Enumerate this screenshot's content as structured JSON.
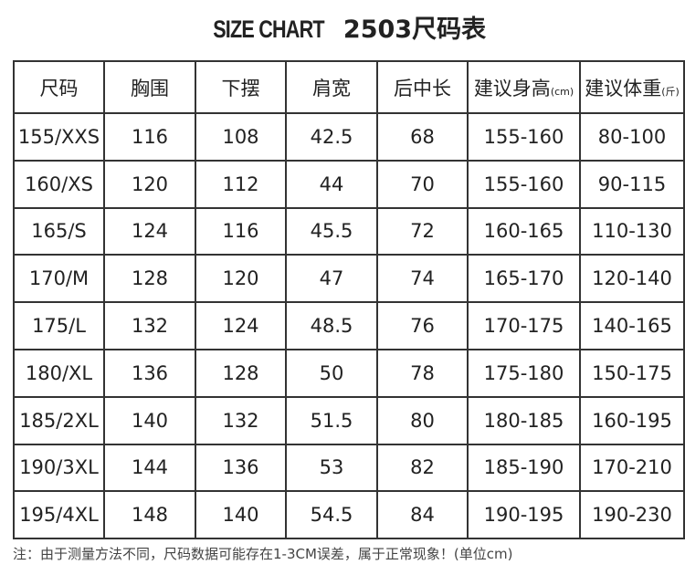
{
  "header": {
    "title_en": "SIZE CHART",
    "title_cn": "2503尺码表"
  },
  "table": {
    "columns": [
      "尺码",
      "胸围",
      "下摆",
      "肩宽",
      "后中长",
      {
        "label": "建议身高",
        "unit": "(cm)"
      },
      {
        "label": "建议体重",
        "unit": "(斤)"
      }
    ],
    "rows": [
      [
        "155/XXS",
        116,
        108,
        42.5,
        68,
        "155-160",
        "80-100"
      ],
      [
        "160/XS",
        120,
        112,
        44,
        70,
        "155-160",
        "90-115"
      ],
      [
        "165/S",
        124,
        116,
        45.5,
        72,
        "160-165",
        "110-130"
      ],
      [
        "170/M",
        128,
        120,
        47,
        74,
        "165-170",
        "120-140"
      ],
      [
        "175/L",
        132,
        124,
        48.5,
        76,
        "170-175",
        "140-165"
      ],
      [
        "180/XL",
        136,
        128,
        50,
        78,
        "175-180",
        "150-175"
      ],
      [
        "185/2XL",
        140,
        132,
        51.5,
        80,
        "180-185",
        "160-195"
      ],
      [
        "190/3XL",
        144,
        136,
        53,
        82,
        "185-190",
        "170-210"
      ],
      [
        "195/4XL",
        148,
        140,
        54.5,
        84,
        "190-195",
        "190-230"
      ]
    ]
  },
  "note": "注：由于测量方法不同，尺码数据可能存在1-3CM误差，属于正常现象！(单位cm)"
}
